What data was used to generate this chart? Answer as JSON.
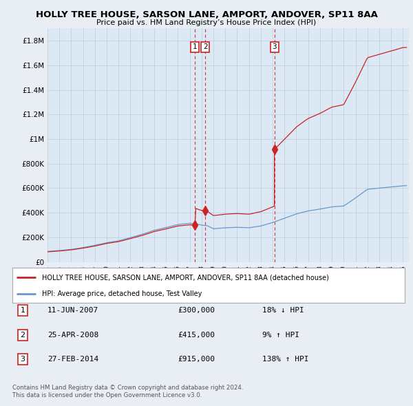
{
  "title": "HOLLY TREE HOUSE, SARSON LANE, AMPORT, ANDOVER, SP11 8AA",
  "subtitle": "Price paid vs. HM Land Registry’s House Price Index (HPI)",
  "legend_label_red": "HOLLY TREE HOUSE, SARSON LANE, AMPORT, ANDOVER, SP11 8AA (detached house)",
  "legend_label_blue": "HPI: Average price, detached house, Test Valley",
  "footer1": "Contains HM Land Registry data © Crown copyright and database right 2024.",
  "footer2": "This data is licensed under the Open Government Licence v3.0.",
  "transactions": [
    {
      "num": "1",
      "date": "11-JUN-2007",
      "price": 300000,
      "pct": "18% ↓ HPI",
      "year": 2007.44
    },
    {
      "num": "2",
      "date": "25-APR-2008",
      "price": 415000,
      "pct": "9% ↑ HPI",
      "year": 2008.32
    },
    {
      "num": "3",
      "date": "27-FEB-2014",
      "price": 915000,
      "pct": "138% ↑ HPI",
      "year": 2014.15
    }
  ],
  "ylim": [
    0,
    1900000
  ],
  "xlim_start": 1995.0,
  "xlim_end": 2025.5,
  "yticks": [
    0,
    200000,
    400000,
    600000,
    800000,
    1000000,
    1200000,
    1400000,
    1600000,
    1800000
  ],
  "ytick_labels": [
    "£0",
    "£200K",
    "£400K",
    "£600K",
    "£800K",
    "£1M",
    "£1.2M",
    "£1.4M",
    "£1.6M",
    "£1.8M"
  ],
  "background_color": "#e8eef4",
  "plot_bg_color": "#dce8f4",
  "red_color": "#cc2222",
  "blue_color": "#6699cc",
  "vline_color": "#cc2222",
  "grid_color": "#bbccdd",
  "legend_bg": "#ffffff",
  "legend_border": "#aaaaaa"
}
